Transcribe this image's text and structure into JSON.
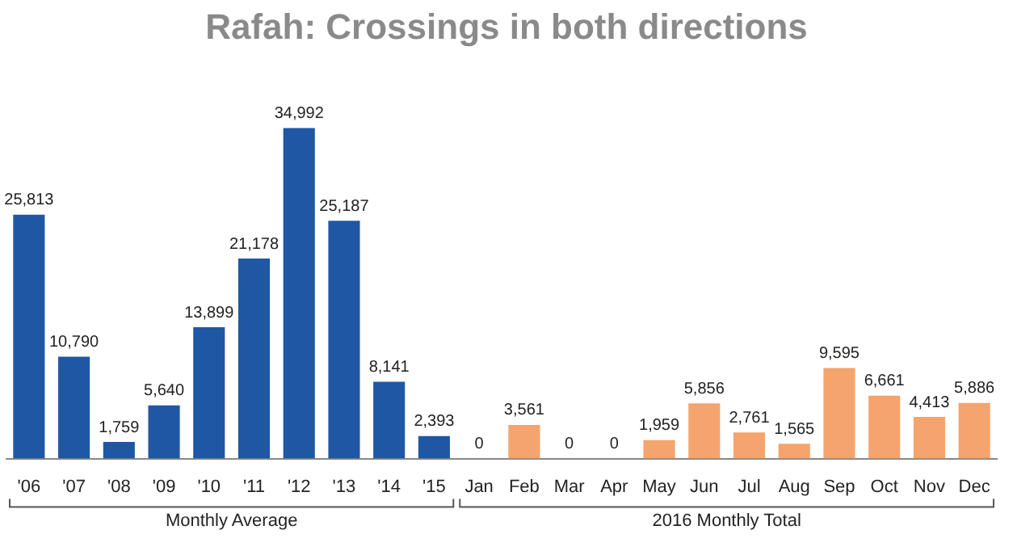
{
  "chart_data": {
    "type": "bar",
    "title": "Rafah: Crossings in both directions",
    "categories": [
      "'06",
      "'07",
      "'08",
      "'09",
      "'10",
      "'11",
      "'12",
      "'13",
      "'14",
      "'15",
      "Jan",
      "Feb",
      "Mar",
      "Apr",
      "May",
      "Jun",
      "Jul",
      "Aug",
      "Sep",
      "Oct",
      "Nov",
      "Dec"
    ],
    "values": [
      25813,
      10790,
      1759,
      5640,
      13899,
      21178,
      34992,
      25187,
      8141,
      2393,
      0,
      3561,
      0,
      0,
      1959,
      5856,
      2761,
      1565,
      9595,
      6661,
      4413,
      5886
    ],
    "colors": [
      "#1f57a4",
      "#1f57a4",
      "#1f57a4",
      "#1f57a4",
      "#1f57a4",
      "#1f57a4",
      "#1f57a4",
      "#1f57a4",
      "#1f57a4",
      "#1f57a4",
      "#f4a46c",
      "#f4a46c",
      "#f4a46c",
      "#f4a46c",
      "#f4a46c",
      "#f4a46c",
      "#f4a46c",
      "#f4a46c",
      "#f4a46c",
      "#f4a46c",
      "#f4a46c",
      "#f4a46c"
    ],
    "value_labels": [
      "25,813",
      "10,790",
      "1,759",
      "5,640",
      "13,899",
      "21,178",
      "34,992",
      "25,187",
      "8,141",
      "2,393",
      "0",
      "3,561",
      "0",
      "0",
      "1,959",
      "5,856",
      "2,761",
      "1,565",
      "9,595",
      "6,661",
      "4,413",
      "5,886"
    ],
    "annotations": [
      "Monthly Average",
      "2016 Monthly Total"
    ]
  }
}
